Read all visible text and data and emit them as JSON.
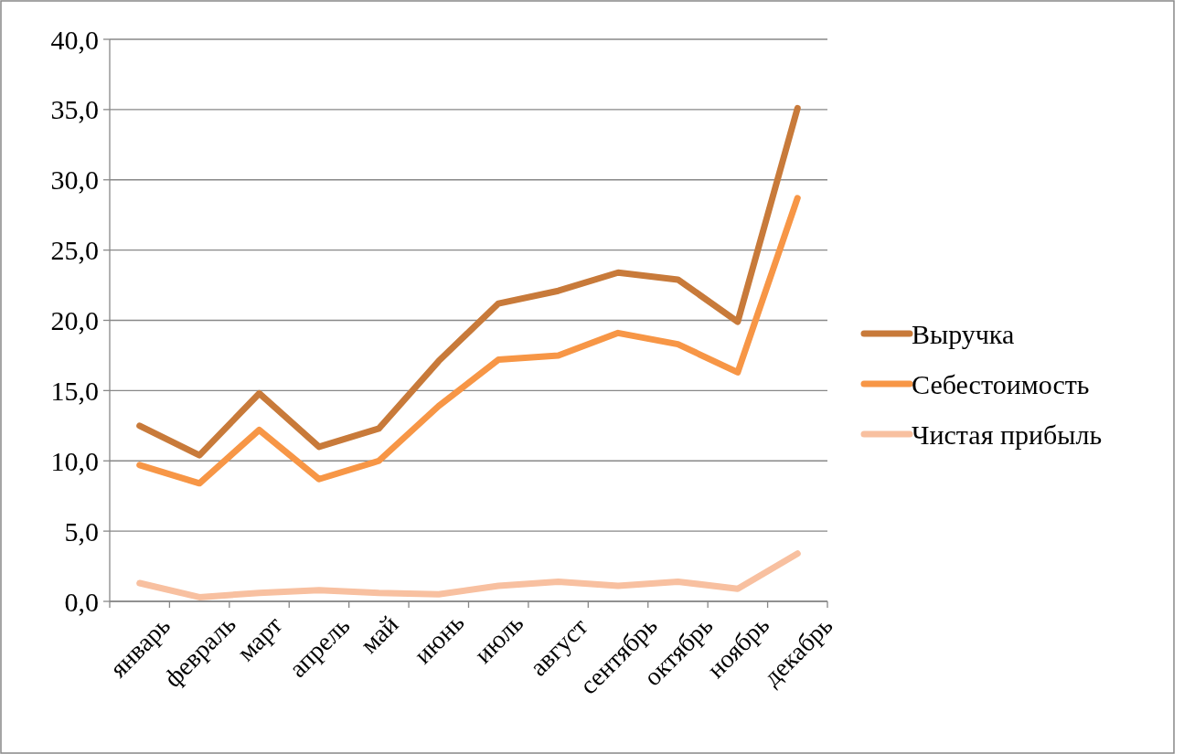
{
  "chart_data": {
    "type": "line",
    "categories": [
      "январь",
      "февраль",
      "март",
      "апрель",
      "май",
      "июнь",
      "июль",
      "август",
      "сентябрь",
      "октябрь",
      "ноябрь",
      "декабрь"
    ],
    "series": [
      {
        "name": "Выручка",
        "color": "#c87a3a",
        "values": [
          12.5,
          10.4,
          14.8,
          11.0,
          12.3,
          17.1,
          21.2,
          22.1,
          23.4,
          22.9,
          19.9,
          35.1
        ]
      },
      {
        "name": "Себестоимость",
        "color": "#f79646",
        "values": [
          9.7,
          8.4,
          12.2,
          8.7,
          10.0,
          13.9,
          17.2,
          17.5,
          19.1,
          18.3,
          16.3,
          28.7
        ]
      },
      {
        "name": "Чистая прибыль",
        "color": "#f8c0a0",
        "values": [
          1.3,
          0.3,
          0.6,
          0.8,
          0.6,
          0.5,
          1.1,
          1.4,
          1.1,
          1.4,
          0.9,
          3.4
        ]
      }
    ],
    "ylim": [
      0,
      40
    ],
    "yticks": [
      {
        "value": 0,
        "label": "0,0"
      },
      {
        "value": 5,
        "label": "5,0"
      },
      {
        "value": 10,
        "label": "10,0"
      },
      {
        "value": 15,
        "label": "15,0"
      },
      {
        "value": 20,
        "label": "20,0"
      },
      {
        "value": 25,
        "label": "25,0"
      },
      {
        "value": 30,
        "label": "30,0"
      },
      {
        "value": 35,
        "label": "35,0"
      },
      {
        "value": 40,
        "label": "40,0"
      }
    ],
    "grid": "y",
    "legend": "right",
    "marker": "none",
    "line_style": "solid"
  }
}
